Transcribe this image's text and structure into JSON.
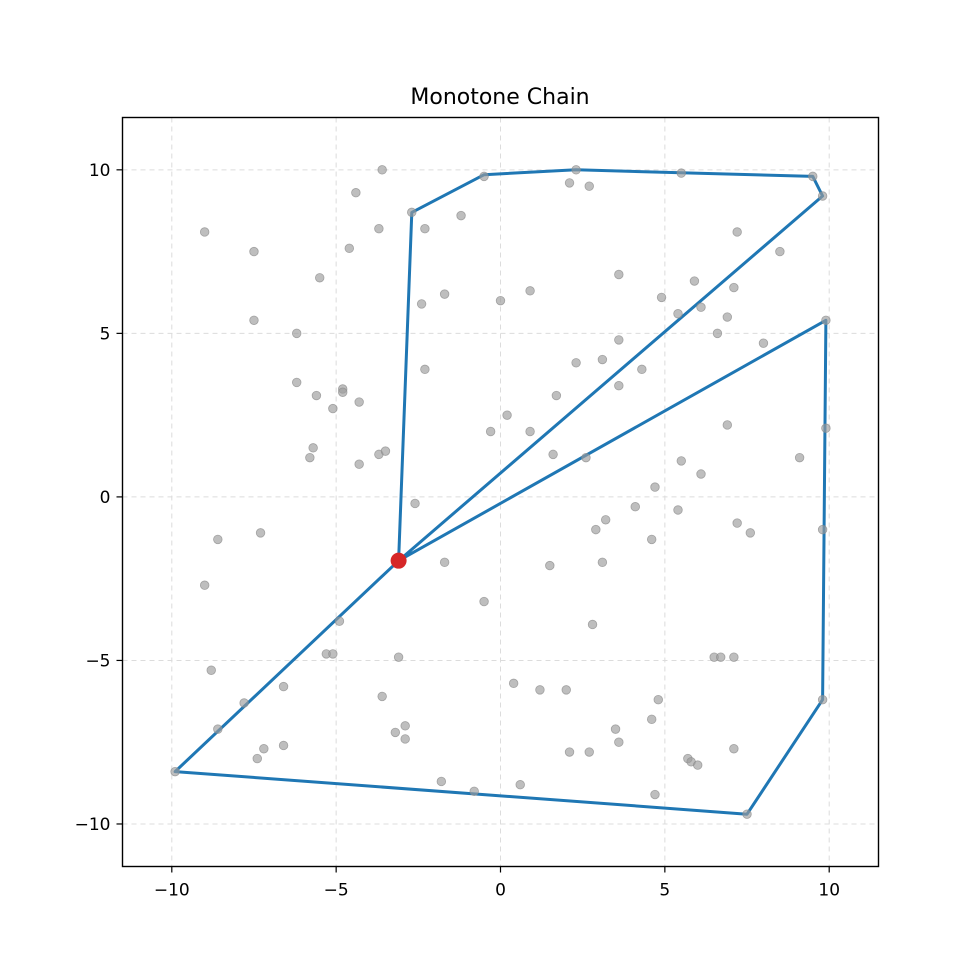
{
  "chart_data": {
    "type": "scatter",
    "title": "Monotone Chain",
    "xlabel": "",
    "ylabel": "",
    "xlim": [
      -11.5,
      11.5
    ],
    "ylim": [
      -11.3,
      11.6
    ],
    "x_ticks": [
      -10,
      -5,
      0,
      5,
      10
    ],
    "y_ticks": [
      -10,
      -5,
      0,
      5,
      10
    ],
    "x_tick_labels": [
      "−10",
      "−5",
      "0",
      "5",
      "10"
    ],
    "y_tick_labels": [
      "−10",
      "−5",
      "0",
      "5",
      "10"
    ],
    "grid": true,
    "colors": {
      "points": "#9b9b9b",
      "chain": "#1f77b4",
      "anchor": "#d62728"
    },
    "points": [
      [
        -9.9,
        -8.4
      ],
      [
        -8.6,
        -7.1
      ],
      [
        -7.8,
        -6.3
      ],
      [
        -7.2,
        -7.7
      ],
      [
        -7.4,
        -8.0
      ],
      [
        -6.6,
        -7.6
      ],
      [
        -6.6,
        -5.8
      ],
      [
        -8.8,
        -5.3
      ],
      [
        -9.0,
        -2.7
      ],
      [
        -8.6,
        -1.3
      ],
      [
        -7.3,
        -1.1
      ],
      [
        -5.3,
        -4.8
      ],
      [
        -5.1,
        -4.8
      ],
      [
        -4.9,
        -3.8
      ],
      [
        -3.6,
        -6.1
      ],
      [
        -3.2,
        -7.2
      ],
      [
        -2.9,
        -7.0
      ],
      [
        -2.9,
        -7.4
      ],
      [
        -3.1,
        -4.9
      ],
      [
        -1.8,
        -8.7
      ],
      [
        -0.8,
        -9.0
      ],
      [
        0.6,
        -8.8
      ],
      [
        0.4,
        -5.7
      ],
      [
        1.2,
        -5.9
      ],
      [
        2.0,
        -5.9
      ],
      [
        2.1,
        -7.8
      ],
      [
        2.7,
        -7.8
      ],
      [
        2.8,
        -3.9
      ],
      [
        3.5,
        -7.1
      ],
      [
        3.6,
        -7.5
      ],
      [
        4.6,
        -6.8
      ],
      [
        4.8,
        -6.2
      ],
      [
        4.7,
        -9.1
      ],
      [
        5.7,
        -8.0
      ],
      [
        5.8,
        -8.1
      ],
      [
        6.0,
        -8.2
      ],
      [
        6.5,
        -4.9
      ],
      [
        6.7,
        -4.9
      ],
      [
        7.1,
        -4.9
      ],
      [
        7.1,
        -7.7
      ],
      [
        7.5,
        -9.7
      ],
      [
        9.8,
        -6.2
      ],
      [
        -0.5,
        -3.2
      ],
      [
        -1.7,
        -2.0
      ],
      [
        -2.6,
        -0.2
      ],
      [
        1.5,
        -2.1
      ],
      [
        2.9,
        -1.0
      ],
      [
        3.2,
        -0.7
      ],
      [
        3.1,
        -2.0
      ],
      [
        4.1,
        -0.3
      ],
      [
        4.6,
        -1.3
      ],
      [
        4.7,
        0.3
      ],
      [
        5.4,
        -0.4
      ],
      [
        7.2,
        -0.8
      ],
      [
        7.6,
        -1.1
      ],
      [
        9.8,
        -1.0
      ],
      [
        5.5,
        1.1
      ],
      [
        6.1,
        0.7
      ],
      [
        9.1,
        1.2
      ],
      [
        9.9,
        2.1
      ],
      [
        6.9,
        2.2
      ],
      [
        2.6,
        1.2
      ],
      [
        1.6,
        1.3
      ],
      [
        0.9,
        2.0
      ],
      [
        0.2,
        2.5
      ],
      [
        -0.3,
        2.0
      ],
      [
        -5.8,
        1.2
      ],
      [
        -5.7,
        1.5
      ],
      [
        -3.7,
        1.3
      ],
      [
        -3.5,
        1.4
      ],
      [
        -4.3,
        1.0
      ],
      [
        -6.2,
        3.5
      ],
      [
        -5.6,
        3.1
      ],
      [
        -4.8,
        3.3
      ],
      [
        -4.8,
        3.2
      ],
      [
        -5.1,
        2.7
      ],
      [
        -4.3,
        2.9
      ],
      [
        -2.3,
        3.9
      ],
      [
        -6.2,
        5.0
      ],
      [
        -7.5,
        5.4
      ],
      [
        -2.4,
        5.9
      ],
      [
        -1.7,
        6.2
      ],
      [
        0.0,
        6.0
      ],
      [
        0.9,
        6.3
      ],
      [
        1.7,
        3.1
      ],
      [
        2.3,
        4.1
      ],
      [
        3.1,
        4.2
      ],
      [
        3.6,
        3.4
      ],
      [
        3.6,
        4.8
      ],
      [
        4.3,
        3.9
      ],
      [
        3.6,
        6.8
      ],
      [
        4.9,
        6.1
      ],
      [
        5.4,
        5.6
      ],
      [
        5.9,
        6.6
      ],
      [
        6.1,
        5.8
      ],
      [
        6.6,
        5.0
      ],
      [
        6.9,
        5.5
      ],
      [
        7.1,
        6.4
      ],
      [
        8.0,
        4.7
      ],
      [
        9.9,
        5.4
      ],
      [
        7.2,
        8.1
      ],
      [
        8.5,
        7.5
      ],
      [
        -9.0,
        8.1
      ],
      [
        -7.5,
        7.5
      ],
      [
        -5.5,
        6.7
      ],
      [
        -4.6,
        7.6
      ],
      [
        -3.7,
        8.2
      ],
      [
        -2.3,
        8.2
      ],
      [
        -2.7,
        8.7
      ],
      [
        -1.2,
        8.6
      ],
      [
        -4.4,
        9.3
      ],
      [
        -3.6,
        10.0
      ],
      [
        -0.5,
        9.8
      ],
      [
        2.1,
        9.6
      ],
      [
        2.3,
        10.0
      ],
      [
        2.7,
        9.5
      ],
      [
        5.5,
        9.9
      ],
      [
        9.5,
        9.8
      ],
      [
        9.8,
        9.2
      ]
    ],
    "chain_path": [
      [
        -3.1,
        -1.95
      ],
      [
        -2.7,
        8.7
      ],
      [
        -0.5,
        9.85
      ],
      [
        2.3,
        10.0
      ],
      [
        9.5,
        9.8
      ],
      [
        9.8,
        9.2
      ],
      [
        -3.1,
        -1.95
      ],
      [
        9.9,
        5.4
      ],
      [
        9.8,
        -6.2
      ],
      [
        7.5,
        -9.7
      ],
      [
        -9.9,
        -8.4
      ],
      [
        -3.1,
        -1.95
      ]
    ],
    "anchor": [
      -3.1,
      -1.95
    ]
  }
}
